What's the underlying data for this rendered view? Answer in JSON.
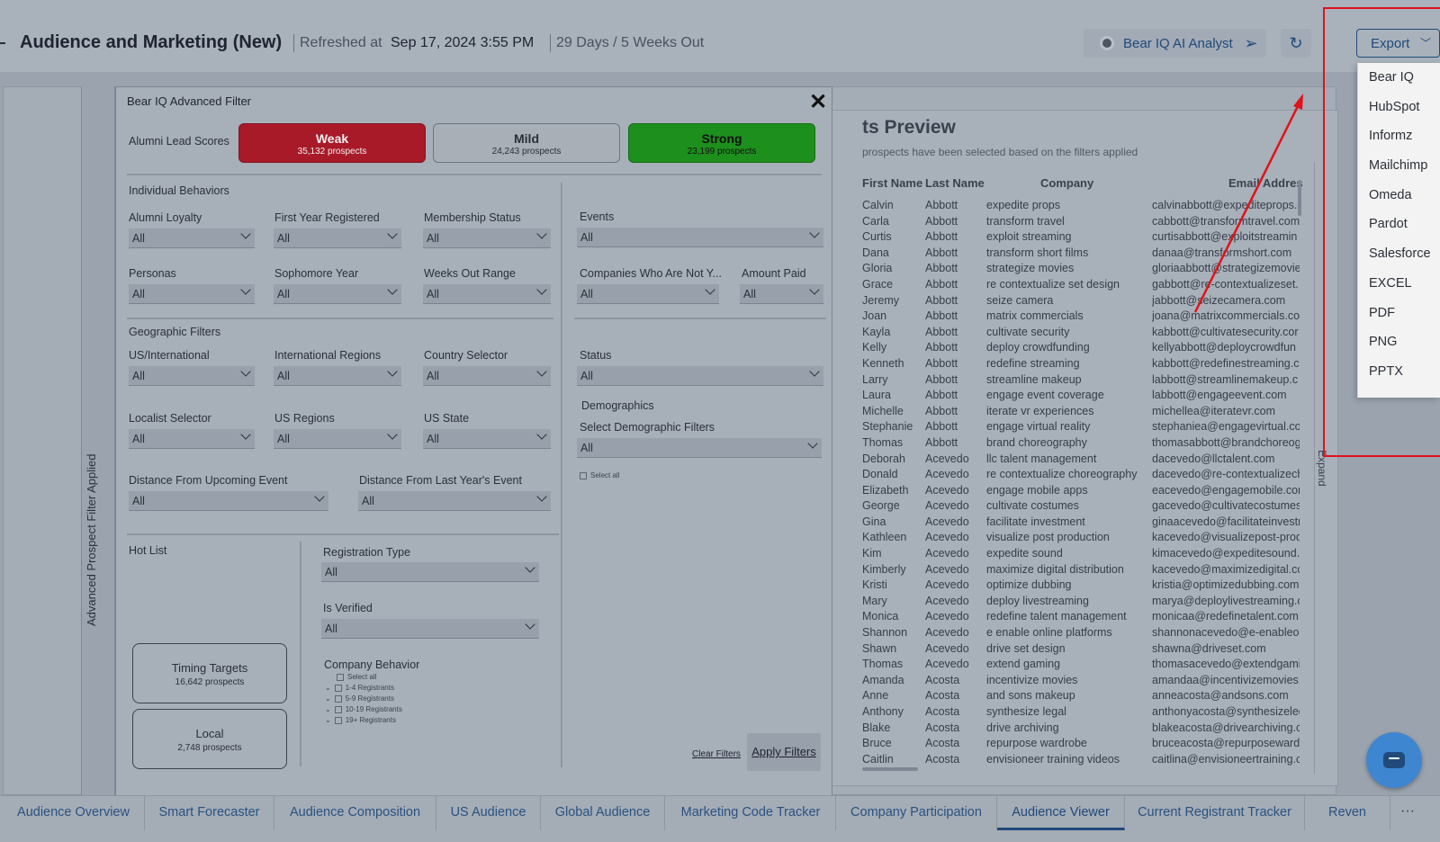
{
  "header": {
    "title": "Audience and Marketing (New)",
    "refreshed_label": "Refreshed at",
    "refreshed_value": "Sep 17, 2024 3:55 PM",
    "days_out": "29 Days / 5 Weeks Out",
    "ai_button": "Bear IQ AI Analyst",
    "export_button": "Export",
    "icons": [
      "bear-iq-icon",
      "send-icon",
      "refresh-icon",
      "chevron-down-icon"
    ]
  },
  "export_menu": {
    "items": [
      "Bear IQ",
      "HubSpot",
      "Informz",
      "Mailchimp",
      "Omeda",
      "Pardot",
      "Salesforce",
      "EXCEL",
      "PDF",
      "PNG",
      "PPTX"
    ]
  },
  "sidebar": {
    "vertical_label": "Advanced Prospect Filter Applied"
  },
  "modal": {
    "title": "Bear IQ Advanced Filter",
    "close": "✕",
    "scores_label": "Alumni Lead Scores",
    "scores": [
      {
        "name": "Weak",
        "count": "35,132 prospects",
        "color": "#a91a29"
      },
      {
        "name": "Mild",
        "count": "24,243 prospects",
        "color": "#a9afb7"
      },
      {
        "name": "Strong",
        "count": "23,199 prospects",
        "color": "#1d8f1d"
      }
    ],
    "individual_behaviors": "Individual Behaviors",
    "geographic_filters": "Geographic Filters",
    "demographics": "Demographics",
    "hot_list": "Hot List",
    "filters": {
      "alumni_loyalty": {
        "label": "Alumni Loyalty",
        "value": "All"
      },
      "first_year_registered": {
        "label": "First Year Registered",
        "value": "All"
      },
      "membership_status": {
        "label": "Membership Status",
        "value": "All"
      },
      "events": {
        "label": "Events",
        "value": "All"
      },
      "personas": {
        "label": "Personas",
        "value": "All"
      },
      "sophomore_year": {
        "label": "Sophomore Year",
        "value": "All"
      },
      "weeks_out_range": {
        "label": "Weeks Out Range",
        "value": "All"
      },
      "companies_not": {
        "label": "Companies Who Are Not Y...",
        "value": "All"
      },
      "amount_paid": {
        "label": "Amount Paid",
        "value": "All"
      },
      "us_international": {
        "label": "US/International",
        "value": "All"
      },
      "international_regions": {
        "label": "International Regions",
        "value": "All"
      },
      "country_selector": {
        "label": "Country Selector",
        "value": "All"
      },
      "status": {
        "label": "Status",
        "value": "All"
      },
      "localist_selector": {
        "label": "Localist Selector",
        "value": "All"
      },
      "us_regions": {
        "label": "US Regions",
        "value": "All"
      },
      "us_state": {
        "label": "US State",
        "value": "All"
      },
      "demographic_filters": {
        "label": "Select Demographic Filters",
        "value": "All"
      },
      "distance_upcoming": {
        "label": "Distance From Upcoming Event",
        "value": "All"
      },
      "distance_last_year": {
        "label": "Distance From Last Year's Event",
        "value": "All"
      },
      "registration_type": {
        "label": "Registration Type",
        "value": "All"
      },
      "is_verified": {
        "label": "Is Verified",
        "value": "All"
      }
    },
    "demographic_select_all": "Select all",
    "company_behavior": {
      "label": "Company Behavior",
      "options": [
        "Select all",
        "1-4 Registrants",
        "5-9 Registrants",
        "10-19 Registrants",
        "19+ Registrants"
      ]
    },
    "timing_targets": {
      "name": "Timing Targets",
      "count": "16,642 prospects"
    },
    "local": {
      "name": "Local",
      "count": "2,748 prospects"
    },
    "clear_filters": "Clear Filters",
    "apply_filters": "Apply Filters"
  },
  "preview": {
    "title": "ts Preview",
    "subtitle": "prospects have been selected based on the filters applied",
    "columns": [
      "First Name",
      "Last Name",
      "Company",
      "Email Addres"
    ],
    "expand_label": "Expand",
    "rows": [
      [
        "Calvin",
        "Abbott",
        "expedite props",
        "calvinabbott@expediteprops.c"
      ],
      [
        "Carla",
        "Abbott",
        "transform travel",
        "cabbott@transformtravel.com"
      ],
      [
        "Curtis",
        "Abbott",
        "exploit streaming",
        "curtisabbott@exploitstreamin"
      ],
      [
        "Dana",
        "Abbott",
        "transform short films",
        "danaa@transformshort.com"
      ],
      [
        "Gloria",
        "Abbott",
        "strategize movies",
        "gloriaabbott@strategizemovie"
      ],
      [
        "Grace",
        "Abbott",
        "re contextualize set design",
        "gabbott@re-contextualizeset."
      ],
      [
        "Jeremy",
        "Abbott",
        "seize camera",
        "jabbott@seizecamera.com"
      ],
      [
        "Joan",
        "Abbott",
        "matrix commercials",
        "joana@matrixcommercials.cor"
      ],
      [
        "Kayla",
        "Abbott",
        "cultivate security",
        "kabbott@cultivatesecurity.cor"
      ],
      [
        "Kelly",
        "Abbott",
        "deploy crowdfunding",
        "kellyabbott@deploycrowdfun"
      ],
      [
        "Kenneth",
        "Abbott",
        "redefine streaming",
        "kabbott@redefinestreaming.cc"
      ],
      [
        "Larry",
        "Abbott",
        "streamline makeup",
        "labbott@streamlinemakeup.c"
      ],
      [
        "Laura",
        "Abbott",
        "engage event coverage",
        "labbott@engageevent.com"
      ],
      [
        "Michelle",
        "Abbott",
        "iterate vr experiences",
        "michellea@iteratevr.com"
      ],
      [
        "Stephanie",
        "Abbott",
        "engage virtual reality",
        "stephaniea@engagevirtual.co"
      ],
      [
        "Thomas",
        "Abbott",
        "brand choreography",
        "thomasabbott@brandchoreog"
      ],
      [
        "Deborah",
        "Acevedo",
        "llc talent management",
        "dacevedo@llctalent.com"
      ],
      [
        "Donald",
        "Acevedo",
        "re contextualize choreography",
        "dacevedo@re-contextualizech"
      ],
      [
        "Elizabeth",
        "Acevedo",
        "engage mobile apps",
        "eacevedo@engagemobile.com"
      ],
      [
        "George",
        "Acevedo",
        "cultivate costumes",
        "gacevedo@cultivatecostumes"
      ],
      [
        "Gina",
        "Acevedo",
        "facilitate investment",
        "ginaacevedo@facilitateinvestm"
      ],
      [
        "Kathleen",
        "Acevedo",
        "visualize post production",
        "kacevedo@visualizepost-prod"
      ],
      [
        "Kim",
        "Acevedo",
        "expedite sound",
        "kimacevedo@expeditesound.c"
      ],
      [
        "Kimberly",
        "Acevedo",
        "maximize digital distribution",
        "kacevedo@maximizedigital.cc"
      ],
      [
        "Kristi",
        "Acevedo",
        "optimize dubbing",
        "kristia@optimizedubbing.com"
      ],
      [
        "Mary",
        "Acevedo",
        "deploy livestreaming",
        "marya@deploylivestreaming.c"
      ],
      [
        "Monica",
        "Acevedo",
        "redefine talent management",
        "monicaa@redefinetalent.com"
      ],
      [
        "Shannon",
        "Acevedo",
        "e enable online platforms",
        "shannonacevedo@e-enableor"
      ],
      [
        "Shawn",
        "Acevedo",
        "drive set design",
        "shawna@driveset.com"
      ],
      [
        "Thomas",
        "Acevedo",
        "extend gaming",
        "thomasacevedo@extendgami"
      ],
      [
        "Amanda",
        "Acosta",
        "incentivize movies",
        "amandaa@incentivizemovies.c"
      ],
      [
        "Anne",
        "Acosta",
        "and sons makeup",
        "anneacosta@andsons.com"
      ],
      [
        "Anthony",
        "Acosta",
        "synthesize legal",
        "anthonyacosta@synthesizeleg"
      ],
      [
        "Blake",
        "Acosta",
        "drive archiving",
        "blakeacosta@drivearchiving.cc"
      ],
      [
        "Bruce",
        "Acosta",
        "repurpose wardrobe",
        "bruceacosta@repurposewardr"
      ],
      [
        "Caitlin",
        "Acosta",
        "envisioneer training videos",
        "caitlina@envisioneertraining.c"
      ]
    ]
  },
  "tabs": [
    {
      "label": "Audience Overview",
      "active": false
    },
    {
      "label": "Smart Forecaster",
      "active": false
    },
    {
      "label": "Audience Composition",
      "active": false
    },
    {
      "label": "US Audience",
      "active": false
    },
    {
      "label": "Global Audience",
      "active": false
    },
    {
      "label": "Marketing Code Tracker",
      "active": false
    },
    {
      "label": "Company Participation",
      "active": false
    },
    {
      "label": "Audience Viewer",
      "active": true
    },
    {
      "label": "Current Registrant Tracker",
      "active": false
    },
    {
      "label": "Reven",
      "active": false
    }
  ],
  "tabs_more": "···",
  "colors": {
    "accent": "#1f4a7a",
    "annotation": "#e0121b",
    "chat": "#3f86d1"
  }
}
